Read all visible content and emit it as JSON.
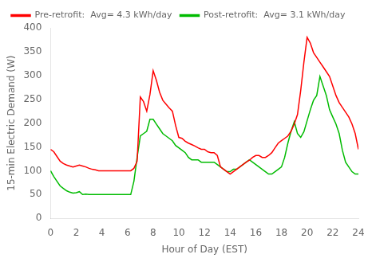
{
  "chart_data": {
    "type": "line",
    "xlabel": "Hour of Day (EST)",
    "ylabel": "15-min Electric Demand (W)",
    "xlim": [
      0,
      24
    ],
    "ylim": [
      0,
      400
    ],
    "xticks": [
      0,
      2,
      4,
      6,
      8,
      10,
      12,
      14,
      16,
      18,
      20,
      22,
      24
    ],
    "yticks": [
      0,
      50,
      100,
      150,
      200,
      250,
      300,
      350,
      400
    ],
    "grid": false,
    "legend": "upper left",
    "x": [
      0.0,
      0.25,
      0.5,
      0.75,
      1.0,
      1.25,
      1.5,
      1.75,
      2.0,
      2.25,
      2.5,
      2.75,
      3.0,
      3.25,
      3.5,
      3.75,
      4.0,
      4.25,
      4.5,
      4.75,
      5.0,
      5.25,
      5.5,
      5.75,
      6.0,
      6.25,
      6.5,
      6.75,
      7.0,
      7.25,
      7.5,
      7.75,
      8.0,
      8.25,
      8.5,
      8.75,
      9.0,
      9.25,
      9.5,
      9.75,
      10.0,
      10.25,
      10.5,
      10.75,
      11.0,
      11.25,
      11.5,
      11.75,
      12.0,
      12.25,
      12.5,
      12.75,
      13.0,
      13.25,
      13.5,
      13.75,
      14.0,
      14.25,
      14.5,
      14.75,
      15.0,
      15.25,
      15.5,
      15.75,
      16.0,
      16.25,
      16.5,
      16.75,
      17.0,
      17.25,
      17.5,
      17.75,
      18.0,
      18.25,
      18.5,
      18.75,
      19.0,
      19.25,
      19.5,
      19.75,
      20.0,
      20.25,
      20.5,
      20.75,
      21.0,
      21.25,
      21.5,
      21.75,
      22.0,
      22.25,
      22.5,
      22.75,
      23.0,
      23.25,
      23.5,
      23.75,
      24.0
    ],
    "series": [
      {
        "name": "Pre-retrofit:  Avg= 4.3 kWh/day",
        "color": "#ff0000",
        "line_style": "solid",
        "values": [
          145,
          140,
          130,
          120,
          115,
          112,
          110,
          108,
          110,
          112,
          110,
          108,
          105,
          103,
          102,
          100,
          100,
          100,
          100,
          100,
          100,
          100,
          100,
          100,
          100,
          100,
          105,
          120,
          255,
          245,
          225,
          260,
          310,
          290,
          265,
          248,
          240,
          232,
          225,
          195,
          170,
          168,
          162,
          158,
          155,
          152,
          148,
          145,
          145,
          140,
          138,
          138,
          132,
          108,
          103,
          98,
          93,
          98,
          103,
          108,
          113,
          118,
          122,
          128,
          132,
          132,
          128,
          128,
          132,
          138,
          148,
          158,
          163,
          168,
          173,
          183,
          198,
          218,
          268,
          328,
          380,
          368,
          348,
          338,
          328,
          318,
          308,
          298,
          278,
          258,
          243,
          233,
          223,
          213,
          198,
          178,
          145
        ]
      },
      {
        "name": "Post-retrofit:  Avg= 3.1 kWh/day",
        "color": "#00bb00",
        "line_style": "solid",
        "values": [
          100,
          88,
          78,
          68,
          63,
          58,
          55,
          53,
          54,
          56,
          50,
          51,
          50,
          50,
          50,
          50,
          50,
          50,
          50,
          50,
          50,
          50,
          50,
          50,
          50,
          50,
          78,
          128,
          173,
          178,
          183,
          208,
          208,
          198,
          188,
          178,
          173,
          168,
          163,
          153,
          148,
          143,
          138,
          128,
          123,
          123,
          123,
          118,
          118,
          118,
          118,
          118,
          113,
          108,
          103,
          98,
          98,
          103,
          103,
          108,
          113,
          118,
          123,
          118,
          113,
          108,
          103,
          98,
          93,
          93,
          98,
          103,
          108,
          128,
          158,
          183,
          203,
          178,
          170,
          182,
          205,
          228,
          248,
          258,
          298,
          278,
          258,
          228,
          213,
          198,
          178,
          143,
          118,
          108,
          98,
          93,
          93
        ]
      }
    ]
  }
}
